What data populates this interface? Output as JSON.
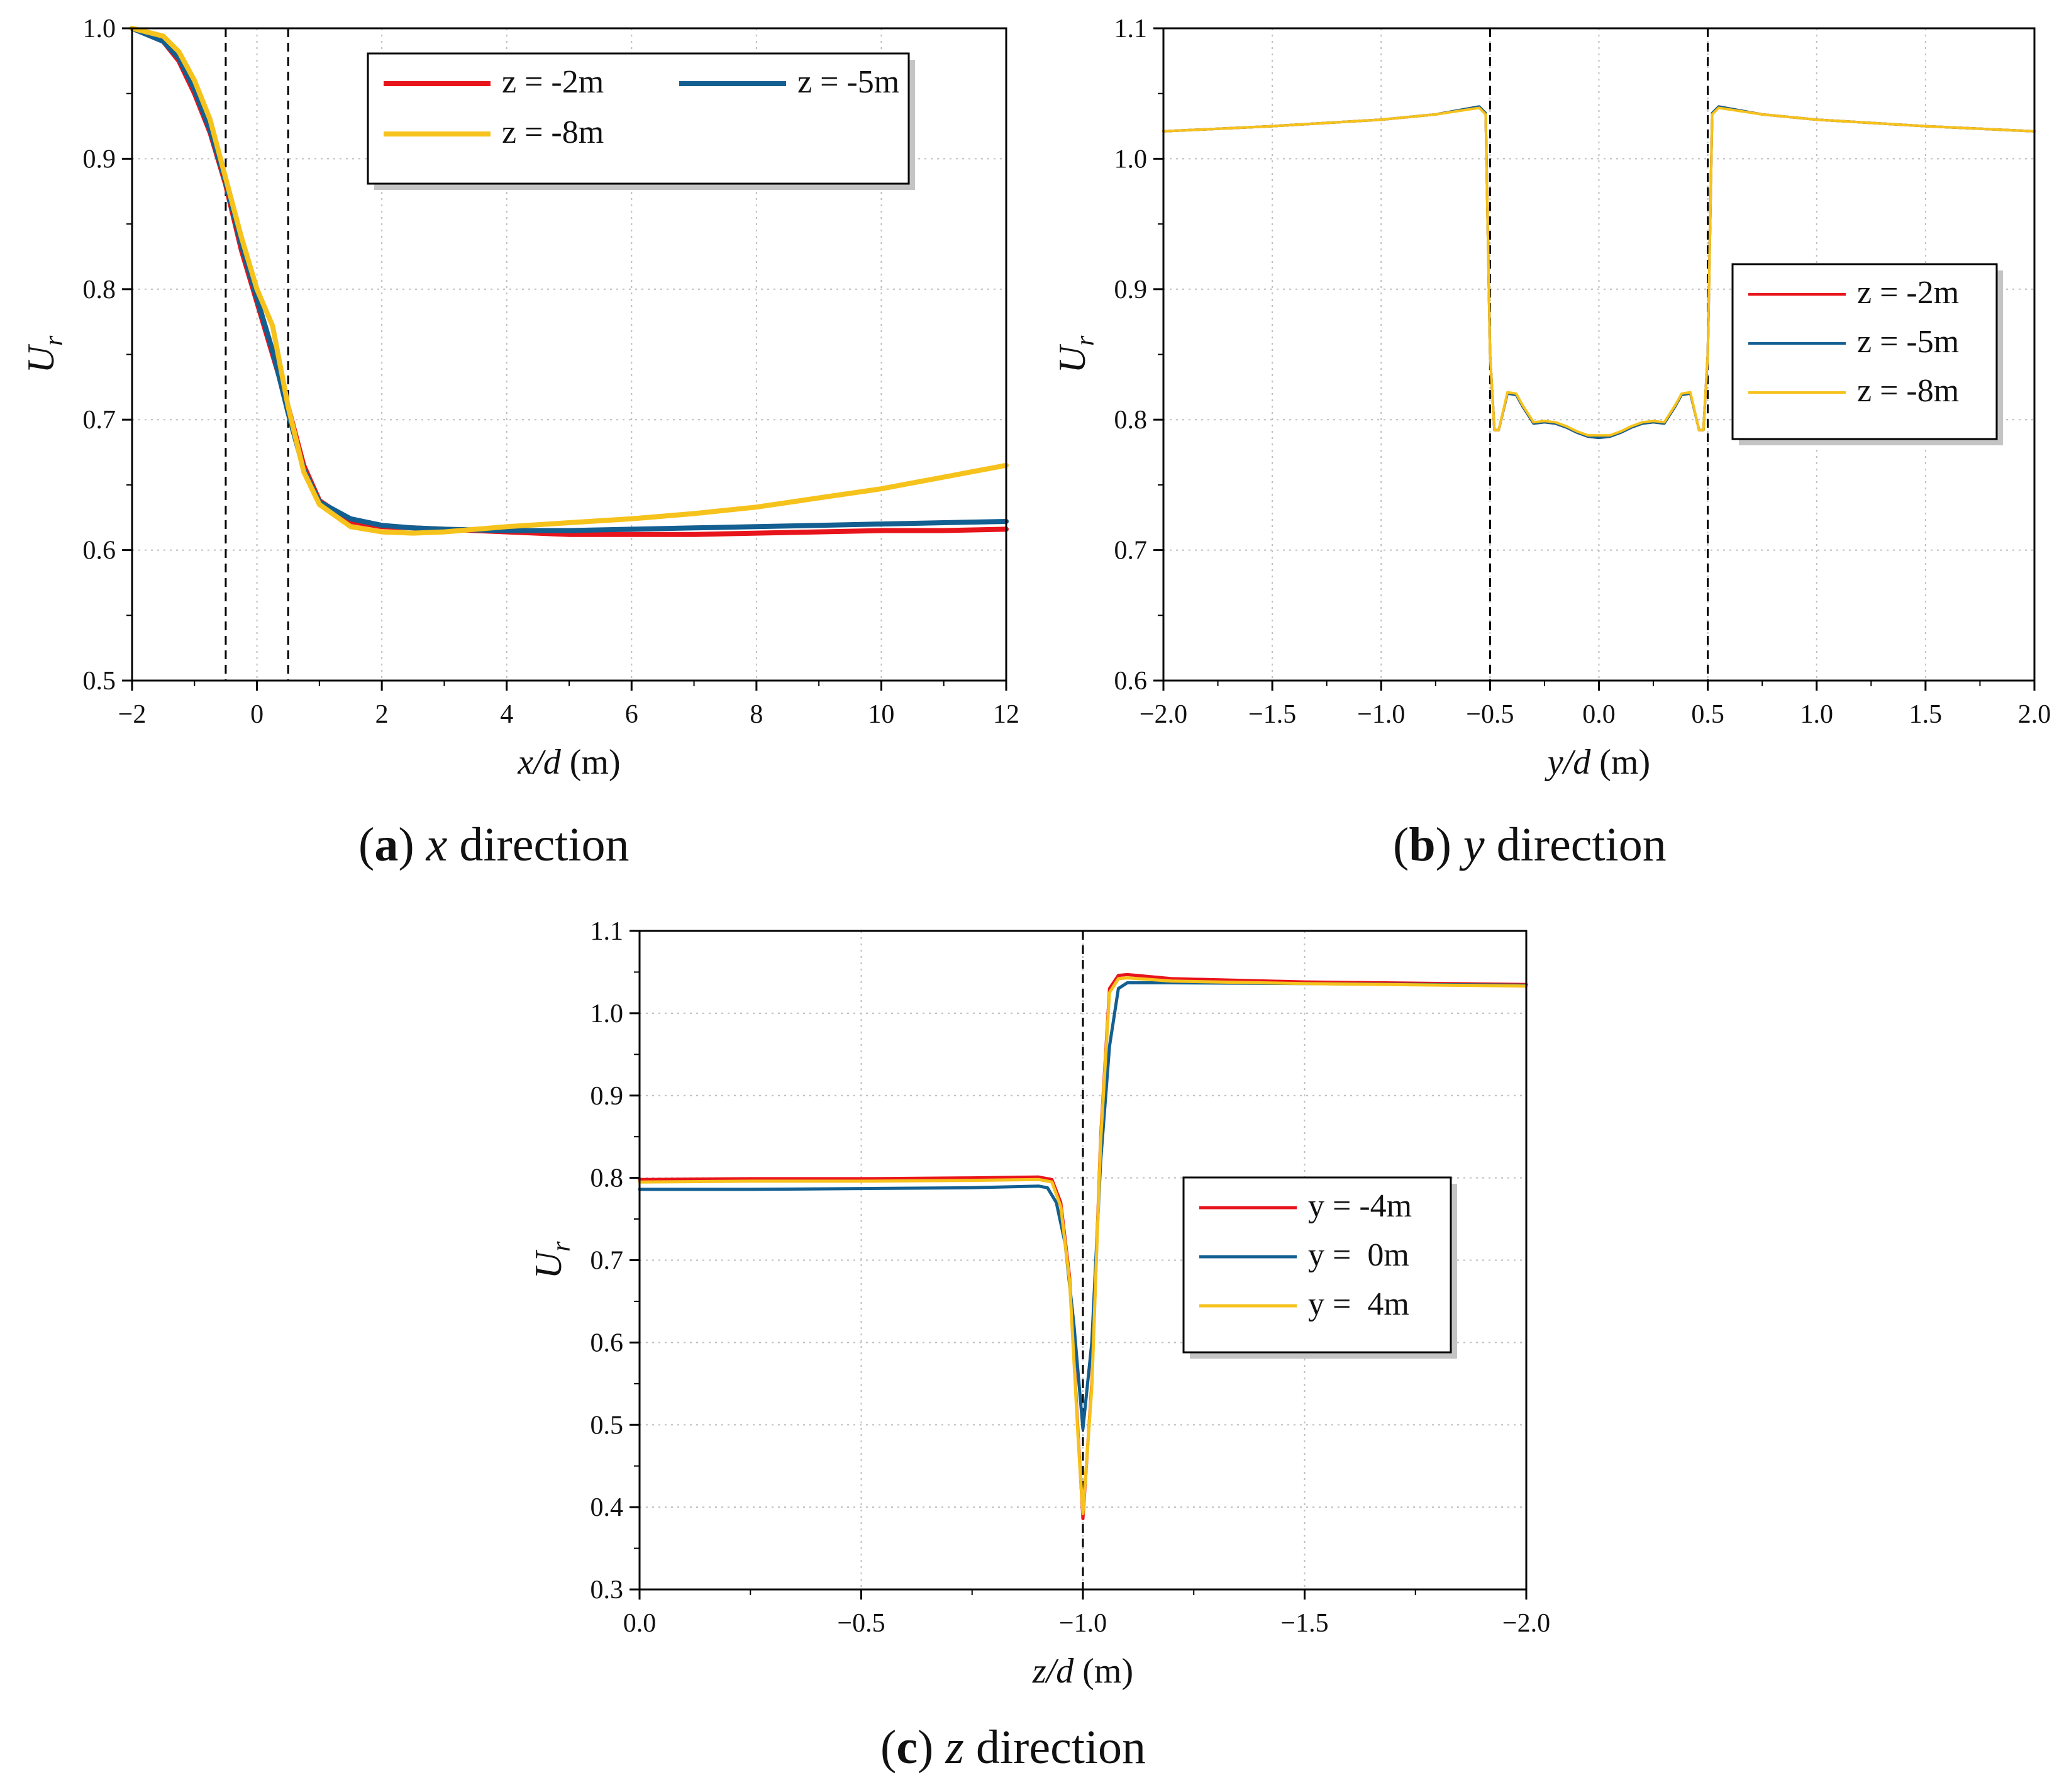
{
  "colors": {
    "red": "#e8141b",
    "blue": "#135f91",
    "yellow": "#f6c21c",
    "orange": "#f0a010",
    "axis": "#000000",
    "grid": "#bdbdbd"
  },
  "chart_data": [
    {
      "type": "line",
      "panel": "a",
      "caption": {
        "letter": "a",
        "var": "x",
        "text": "direction"
      },
      "xlabel": {
        "var": "x/d",
        "unit": "(m)"
      },
      "ylabel": {
        "main": "U",
        "sub": "r"
      },
      "xlim": [
        -2,
        12
      ],
      "ylim": [
        0.5,
        1.0
      ],
      "xticks": [
        -2,
        0,
        2,
        4,
        6,
        8,
        10,
        12
      ],
      "xtick_labels": [
        "−2",
        "0",
        "2",
        "4",
        "6",
        "8",
        "10",
        "12"
      ],
      "yticks": [
        0.5,
        0.6,
        0.7,
        0.8,
        0.9,
        1.0
      ],
      "ytick_labels": [
        "0.5",
        "0.6",
        "0.7",
        "0.8",
        "0.9",
        "1.0"
      ],
      "grid": true,
      "vlines": [
        -0.5,
        0.5
      ],
      "legend": {
        "placement": "top-right",
        "columns": 2
      },
      "series": [
        {
          "name": "z = -2m",
          "color": "#e8141b",
          "x": [
            -2,
            -1.5,
            -1.25,
            -1,
            -0.75,
            -0.5,
            -0.25,
            0,
            0.25,
            0.5,
            0.75,
            1,
            1.5,
            2,
            2.5,
            3,
            4,
            5,
            6,
            7,
            8,
            9,
            10,
            11,
            12
          ],
          "y": [
            1.0,
            0.99,
            0.975,
            0.95,
            0.92,
            0.88,
            0.83,
            0.79,
            0.75,
            0.71,
            0.665,
            0.638,
            0.622,
            0.618,
            0.617,
            0.616,
            0.614,
            0.612,
            0.612,
            0.612,
            0.613,
            0.614,
            0.615,
            0.615,
            0.616
          ]
        },
        {
          "name": "z = -5m",
          "color": "#135f91",
          "x": [
            -2,
            -1.5,
            -1.25,
            -1,
            -0.75,
            -0.5,
            -0.25,
            0,
            0.25,
            0.5,
            0.75,
            1,
            1.5,
            2,
            2.5,
            3,
            4,
            5,
            6,
            7,
            8,
            9,
            10,
            11,
            12
          ],
          "y": [
            1.0,
            0.99,
            0.977,
            0.953,
            0.922,
            0.882,
            0.834,
            0.793,
            0.753,
            0.705,
            0.662,
            0.637,
            0.624,
            0.619,
            0.617,
            0.616,
            0.615,
            0.615,
            0.616,
            0.617,
            0.618,
            0.619,
            0.62,
            0.621,
            0.622
          ]
        },
        {
          "name": "z = -8m",
          "color": "#f6c21c",
          "x": [
            -2,
            -1.5,
            -1.25,
            -1,
            -0.75,
            -0.5,
            -0.25,
            0,
            0.25,
            0.5,
            0.75,
            1,
            1.5,
            2,
            2.5,
            3,
            4,
            5,
            6,
            7,
            8,
            9,
            10,
            11,
            12
          ],
          "y": [
            1.0,
            0.994,
            0.982,
            0.96,
            0.93,
            0.885,
            0.84,
            0.8,
            0.772,
            0.71,
            0.66,
            0.635,
            0.618,
            0.614,
            0.613,
            0.614,
            0.618,
            0.621,
            0.624,
            0.628,
            0.633,
            0.64,
            0.647,
            0.656,
            0.665
          ]
        }
      ]
    },
    {
      "type": "line",
      "panel": "b",
      "caption": {
        "letter": "b",
        "var": "y",
        "text": "direction"
      },
      "xlabel": {
        "var": "y/d",
        "unit": "(m)"
      },
      "ylabel": {
        "main": "U",
        "sub": "r"
      },
      "xlim": [
        -2.0,
        2.0
      ],
      "ylim": [
        0.6,
        1.1
      ],
      "xticks": [
        -2.0,
        -1.5,
        -1.0,
        -0.5,
        0.0,
        0.5,
        1.0,
        1.5,
        2.0
      ],
      "xtick_labels": [
        "−2.0",
        "−1.5",
        "−1.0",
        "−0.5",
        "0.0",
        "0.5",
        "1.0",
        "1.5",
        "2.0"
      ],
      "yticks": [
        0.6,
        0.7,
        0.8,
        0.9,
        1.0,
        1.1
      ],
      "ytick_labels": [
        "0.6",
        "0.7",
        "0.8",
        "0.9",
        "1.0",
        "1.1"
      ],
      "grid": true,
      "vlines": [
        -0.5,
        0.5
      ],
      "legend": {
        "placement": "center-right",
        "columns": 1
      },
      "series": [
        {
          "name": "z = -2m",
          "color": "#e8141b",
          "x": [
            -2.0,
            -1.5,
            -1.0,
            -0.75,
            -0.55,
            -0.52,
            -0.5,
            -0.48,
            -0.46,
            -0.42,
            -0.38,
            -0.35,
            -0.3,
            -0.25,
            -0.2,
            -0.15,
            -0.1,
            -0.05,
            0.0,
            0.05,
            0.1,
            0.15,
            0.2,
            0.25,
            0.3,
            0.35,
            0.38,
            0.42,
            0.46,
            0.48,
            0.5,
            0.52,
            0.55,
            0.75,
            1.0,
            1.5,
            2.0
          ],
          "y": [
            1.021,
            1.025,
            1.03,
            1.034,
            1.04,
            1.035,
            0.85,
            0.792,
            0.792,
            0.82,
            0.819,
            0.81,
            0.797,
            0.798,
            0.797,
            0.794,
            0.79,
            0.787,
            0.786,
            0.787,
            0.79,
            0.794,
            0.797,
            0.798,
            0.797,
            0.81,
            0.819,
            0.82,
            0.792,
            0.792,
            0.85,
            1.035,
            1.04,
            1.034,
            1.03,
            1.025,
            1.021
          ]
        },
        {
          "name": "z = -5m",
          "color": "#135f91",
          "x": [
            -2.0,
            -1.5,
            -1.0,
            -0.75,
            -0.55,
            -0.52,
            -0.5,
            -0.48,
            -0.46,
            -0.42,
            -0.38,
            -0.35,
            -0.3,
            -0.25,
            -0.2,
            -0.15,
            -0.1,
            -0.05,
            0.0,
            0.05,
            0.1,
            0.15,
            0.2,
            0.25,
            0.3,
            0.35,
            0.38,
            0.42,
            0.46,
            0.48,
            0.5,
            0.52,
            0.55,
            0.75,
            1.0,
            1.5,
            2.0
          ],
          "y": [
            1.021,
            1.025,
            1.03,
            1.034,
            1.04,
            1.035,
            0.85,
            0.792,
            0.792,
            0.82,
            0.819,
            0.81,
            0.797,
            0.798,
            0.797,
            0.794,
            0.79,
            0.787,
            0.786,
            0.787,
            0.79,
            0.794,
            0.797,
            0.798,
            0.797,
            0.81,
            0.819,
            0.82,
            0.792,
            0.792,
            0.85,
            1.035,
            1.04,
            1.034,
            1.03,
            1.025,
            1.021
          ]
        },
        {
          "name": "z = -8m",
          "color": "#f6c21c",
          "x": [
            -2.0,
            -1.5,
            -1.0,
            -0.75,
            -0.55,
            -0.52,
            -0.5,
            -0.48,
            -0.46,
            -0.42,
            -0.38,
            -0.35,
            -0.3,
            -0.25,
            -0.2,
            -0.15,
            -0.1,
            -0.05,
            0.0,
            0.05,
            0.1,
            0.15,
            0.2,
            0.25,
            0.3,
            0.35,
            0.38,
            0.42,
            0.46,
            0.48,
            0.5,
            0.52,
            0.55,
            0.75,
            1.0,
            1.5,
            2.0
          ],
          "y": [
            1.021,
            1.025,
            1.03,
            1.034,
            1.039,
            1.034,
            0.85,
            0.792,
            0.792,
            0.821,
            0.82,
            0.811,
            0.798,
            0.799,
            0.798,
            0.795,
            0.791,
            0.788,
            0.788,
            0.788,
            0.791,
            0.795,
            0.798,
            0.799,
            0.798,
            0.811,
            0.82,
            0.821,
            0.792,
            0.792,
            0.85,
            1.034,
            1.039,
            1.034,
            1.03,
            1.025,
            1.021
          ]
        }
      ]
    },
    {
      "type": "line",
      "panel": "c",
      "caption": {
        "letter": "c",
        "var": "z",
        "text": "direction"
      },
      "xlabel": {
        "var": "z/d",
        "unit": "(m)"
      },
      "ylabel": {
        "main": "U",
        "sub": "r"
      },
      "xlim": [
        0.0,
        -2.0
      ],
      "ylim": [
        0.3,
        1.1
      ],
      "xticks": [
        0.0,
        -0.5,
        -1.0,
        -1.5,
        -2.0
      ],
      "xtick_labels": [
        "0.0",
        "−0.5",
        "−1.0",
        "−1.5",
        "−2.0"
      ],
      "yticks": [
        0.3,
        0.4,
        0.5,
        0.6,
        0.7,
        0.8,
        0.9,
        1.0,
        1.1
      ],
      "ytick_labels": [
        "0.3",
        "0.4",
        "0.5",
        "0.6",
        "0.7",
        "0.8",
        "0.9",
        "1.0",
        "1.1"
      ],
      "grid": true,
      "vlines": [
        -1.0
      ],
      "legend": {
        "placement": "center-right",
        "columns": 1
      },
      "series": [
        {
          "name": "y = -4m",
          "color": "#e8141b",
          "x": [
            0.0,
            -0.25,
            -0.5,
            -0.75,
            -0.9,
            -0.93,
            -0.95,
            -0.97,
            -0.99,
            -1.0,
            -1.02,
            -1.04,
            -1.06,
            -1.08,
            -1.1,
            -1.2,
            -1.5,
            -2.0
          ],
          "y": [
            0.798,
            0.799,
            0.799,
            0.8,
            0.801,
            0.798,
            0.77,
            0.68,
            0.48,
            0.386,
            0.55,
            0.85,
            1.03,
            1.046,
            1.047,
            1.042,
            1.038,
            1.035
          ]
        },
        {
          "name": "y =  0m",
          "color": "#135f91",
          "x": [
            0.0,
            -0.25,
            -0.5,
            -0.75,
            -0.9,
            -0.92,
            -0.94,
            -0.96,
            -0.98,
            -1.0,
            -1.02,
            -1.04,
            -1.06,
            -1.08,
            -1.1,
            -1.2,
            -1.5,
            -2.0
          ],
          "y": [
            0.786,
            0.786,
            0.787,
            0.788,
            0.79,
            0.788,
            0.77,
            0.72,
            0.62,
            0.495,
            0.6,
            0.82,
            0.96,
            1.03,
            1.037,
            1.037,
            1.036,
            1.034
          ]
        },
        {
          "name": "y =  4m",
          "color": "#f6c21c",
          "x": [
            0.0,
            -0.25,
            -0.5,
            -0.75,
            -0.9,
            -0.93,
            -0.95,
            -0.97,
            -0.99,
            -1.0,
            -1.02,
            -1.04,
            -1.06,
            -1.08,
            -1.1,
            -1.2,
            -1.5,
            -2.0
          ],
          "y": [
            0.795,
            0.796,
            0.796,
            0.797,
            0.798,
            0.795,
            0.765,
            0.675,
            0.475,
            0.392,
            0.545,
            0.845,
            1.025,
            1.042,
            1.043,
            1.039,
            1.036,
            1.033
          ]
        }
      ]
    }
  ]
}
